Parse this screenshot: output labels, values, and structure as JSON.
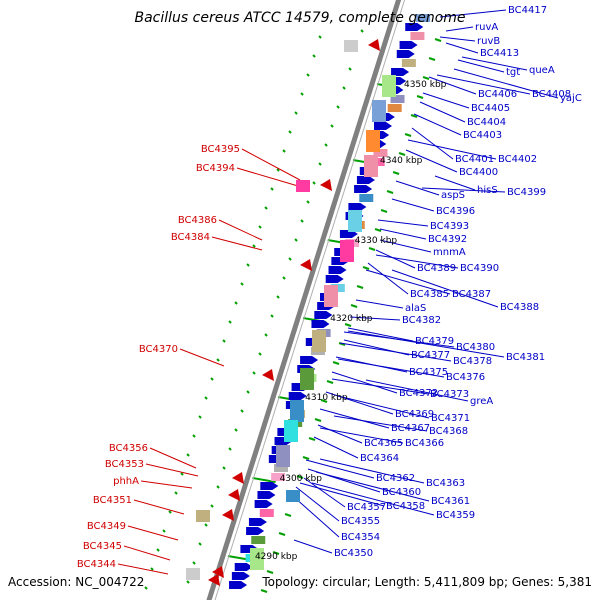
{
  "title": "Bacillus cereus ATCC 14579, complete genome",
  "accession": "Accession: NC_004722",
  "topology": "Topology: circular; Length: 5,411,809 bp; Genes: 5,381",
  "colors": {
    "forward": "#0000c8",
    "reverse": "#d00000",
    "backbone": "#808080",
    "marker": "#00a000"
  },
  "kbp_markers": [
    "4350 kbp",
    "4340 kbp",
    "4330 kbp",
    "4320 kbp",
    "4310 kbp",
    "4300 kbp",
    "4290 kbp"
  ],
  "forward_labels": [
    "BC4417",
    "ruvA",
    "ruvB",
    "BC4413",
    "tgt",
    "queA",
    "BC4406",
    "BC4408",
    "yajC",
    "BC4405",
    "BC4404",
    "BC4403",
    "BC4401",
    "BC4402",
    "BC4400",
    "hisS",
    "BC4399",
    "aspS",
    "BC4396",
    "BC4393",
    "BC4392",
    "mnmA",
    "BC4389",
    "BC4390",
    "BC4385",
    "BC4387",
    "BC4388",
    "alaS",
    "BC4382",
    "BC4379",
    "BC4380",
    "BC4377",
    "BC4378",
    "BC4381",
    "BC4375",
    "BC4376",
    "BC4372",
    "BC4373",
    "greA",
    "BC4369",
    "BC4371",
    "BC4367",
    "BC4368",
    "BC4365",
    "BC4366",
    "BC4364",
    "BC4362",
    "BC4363",
    "BC4360",
    "BC4361",
    "BC4357",
    "BC4358",
    "BC4359",
    "BC4355",
    "BC4354",
    "BC4350"
  ],
  "reverse_labels": [
    "BC4395",
    "BC4394",
    "BC4386",
    "BC4384",
    "BC4370",
    "BC4356",
    "BC4353",
    "phhA",
    "BC4351",
    "BC4349",
    "BC4345",
    "BC4344"
  ]
}
